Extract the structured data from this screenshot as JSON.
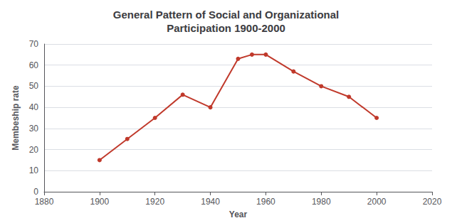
{
  "chart_data": {
    "type": "line",
    "title": "General Pattern of Social and Organizational\nParticipation 1900-2000",
    "xlabel": "Year",
    "ylabel": "Membeship rate",
    "x": [
      1900,
      1910,
      1920,
      1930,
      1940,
      1950,
      1955,
      1960,
      1970,
      1980,
      1990,
      2000
    ],
    "values": [
      15,
      25,
      35,
      46,
      40,
      63,
      65,
      65,
      57,
      50,
      45,
      35
    ],
    "color": "#c0392b",
    "marker": "circle",
    "xlim": [
      1880,
      2020
    ],
    "ylim": [
      0,
      70
    ],
    "xticks": [
      1880,
      1900,
      1920,
      1940,
      1960,
      1980,
      2000,
      2020
    ],
    "yticks": [
      0,
      10,
      20,
      30,
      40,
      50,
      60,
      70
    ],
    "grid": true
  }
}
